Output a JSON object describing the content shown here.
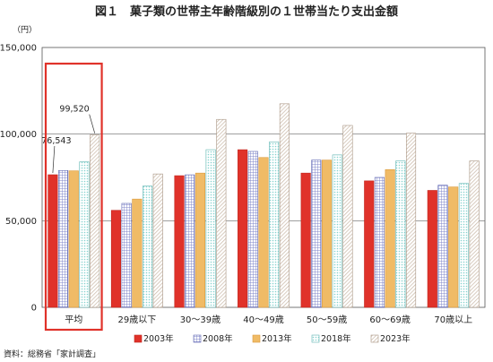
{
  "chart_data": {
    "type": "bar",
    "title": "図１　菓子類の世帯主年齢階級別の１世帯当たり支出金額",
    "unit": "（円）",
    "source": "資料：総務省「家計調査」",
    "categories": [
      "平均",
      "29歳以下",
      "30～39歳",
      "40～49歳",
      "50～59歳",
      "60～69歳",
      "70歳以上"
    ],
    "series": [
      {
        "name": "2003年",
        "values": [
          76543,
          56000,
          76000,
          91000,
          77500,
          73000,
          67500
        ]
      },
      {
        "name": "2008年",
        "values": [
          79000,
          60000,
          76500,
          90000,
          85000,
          75000,
          70500
        ]
      },
      {
        "name": "2013年",
        "values": [
          78800,
          62500,
          77500,
          86500,
          85000,
          79500,
          69500
        ]
      },
      {
        "name": "2018年",
        "values": [
          84000,
          70000,
          91000,
          95500,
          88000,
          84500,
          71500
        ]
      },
      {
        "name": "2023年",
        "values": [
          99520,
          77000,
          108500,
          117500,
          105000,
          100500,
          84500
        ]
      }
    ],
    "data_labels": [
      {
        "category": 0,
        "series": 0,
        "text": "76,543"
      },
      {
        "category": 0,
        "series": 4,
        "text": "99,520"
      }
    ],
    "yticks": [
      "0",
      "50,000",
      "100,000",
      "150,000"
    ],
    "ylim": [
      0,
      150000
    ],
    "gridlines": [
      50000,
      100000
    ],
    "highlight_category": 0,
    "highlight_color": "#e0322a",
    "series_colors": [
      "#e0322a",
      "#7f86c9",
      "#f0bb66",
      "#86d2cf",
      "#c8b7a6"
    ],
    "legend_position": "bottom"
  }
}
